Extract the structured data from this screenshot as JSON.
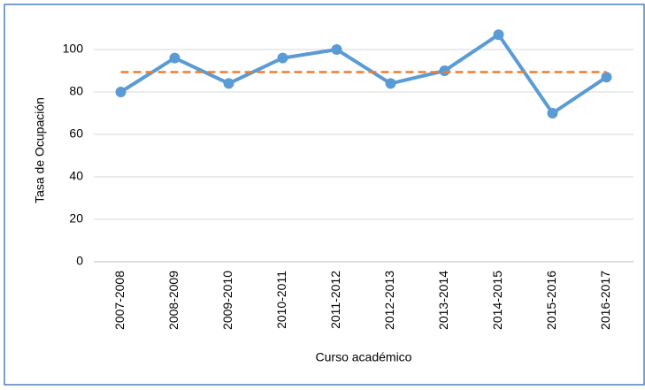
{
  "chart_data": {
    "type": "line",
    "x_label": "Curso académico",
    "y_label": "Tasa de Ocupación",
    "categories": [
      "2007-2008",
      "2008-2009",
      "2009-2010",
      "2010-2011",
      "2011-2012",
      "2012-2013",
      "2013-2014",
      "2014-2015",
      "2015-2016",
      "2016-2017"
    ],
    "series": [
      {
        "color": "#5b9bd5",
        "markers": true,
        "dashed": false,
        "values": [
          80,
          96,
          84,
          96,
          100,
          84,
          90,
          107,
          70,
          87
        ]
      },
      {
        "color": "#ed7d31",
        "markers": false,
        "dashed": true,
        "values": [
          89.4,
          89.4,
          89.4,
          89.4,
          89.4,
          89.4,
          89.4,
          89.4,
          89.4,
          89.4
        ]
      }
    ],
    "ylim": [
      0,
      110
    ],
    "yticks": [
      0,
      20,
      40,
      60,
      80,
      100
    ],
    "grid": true
  }
}
